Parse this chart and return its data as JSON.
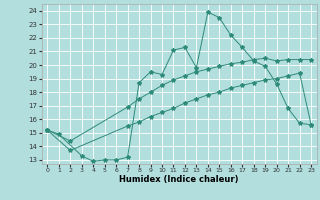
{
  "xlabel": "Humidex (Indice chaleur)",
  "bg_color": "#b2dede",
  "grid_color": "#ffffff",
  "line_color": "#2e8b7a",
  "xlim": [
    -0.5,
    23.5
  ],
  "ylim": [
    12.7,
    24.5
  ],
  "yticks": [
    13,
    14,
    15,
    16,
    17,
    18,
    19,
    20,
    21,
    22,
    23,
    24
  ],
  "xticks": [
    0,
    1,
    2,
    3,
    4,
    5,
    6,
    7,
    8,
    9,
    10,
    11,
    12,
    13,
    14,
    15,
    16,
    17,
    18,
    19,
    20,
    21,
    22,
    23
  ],
  "line1_x": [
    0,
    1,
    3,
    4,
    5,
    6,
    7,
    8,
    9,
    10,
    11,
    12,
    13,
    14,
    15,
    16,
    17,
    18,
    19,
    20,
    21,
    22,
    23
  ],
  "line1_y": [
    15.2,
    14.9,
    13.3,
    12.9,
    13.0,
    13.0,
    13.2,
    18.7,
    19.5,
    19.3,
    21.1,
    21.3,
    19.8,
    23.9,
    23.5,
    22.2,
    21.3,
    20.3,
    19.9,
    18.6,
    16.8,
    15.7,
    15.6
  ],
  "line2_x": [
    0,
    2,
    7,
    8,
    9,
    10,
    11,
    12,
    13,
    14,
    15,
    16,
    17,
    18,
    19,
    20,
    21,
    22,
    23
  ],
  "line2_y": [
    15.2,
    14.4,
    16.9,
    17.5,
    18.0,
    18.5,
    18.9,
    19.2,
    19.5,
    19.7,
    19.9,
    20.1,
    20.2,
    20.4,
    20.5,
    20.3,
    20.4,
    20.4,
    20.4
  ],
  "line3_x": [
    0,
    2,
    7,
    8,
    9,
    10,
    11,
    12,
    13,
    14,
    15,
    16,
    17,
    18,
    19,
    20,
    21,
    22,
    23
  ],
  "line3_y": [
    15.2,
    13.7,
    15.5,
    15.8,
    16.2,
    16.5,
    16.8,
    17.2,
    17.5,
    17.8,
    18.0,
    18.3,
    18.5,
    18.7,
    18.9,
    19.0,
    19.2,
    19.4,
    15.6
  ]
}
